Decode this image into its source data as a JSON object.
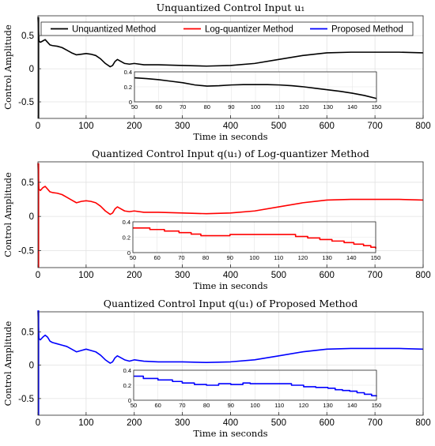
{
  "chart_data": [
    {
      "type": "line",
      "title": "Unquantized Control Input u₁",
      "xlabel": "Time in seconds",
      "ylabel": "Control Amplitude",
      "xlim": [
        0,
        800
      ],
      "ylim": [
        -0.75,
        0.8
      ],
      "xticks": [
        0,
        100,
        200,
        300,
        400,
        500,
        600,
        700,
        800
      ],
      "yticks": [
        -0.5,
        0,
        0.5
      ],
      "grid": true,
      "legend": "top",
      "legend_entries": [
        {
          "name": "Unquantized Method",
          "color": "#000000"
        },
        {
          "name": "Log-quantizer Method",
          "color": "#ff0000"
        },
        {
          "name": "Proposed Method",
          "color": "#0000ff"
        }
      ],
      "series": [
        {
          "name": "Unquantized Method",
          "color": "#000000",
          "x": [
            0,
            2,
            5,
            10,
            15,
            20,
            25,
            30,
            40,
            50,
            60,
            70,
            80,
            90,
            100,
            110,
            120,
            130,
            140,
            150,
            155,
            160,
            165,
            170,
            180,
            190,
            200,
            220,
            250,
            300,
            350,
            400,
            450,
            500,
            550,
            600,
            650,
            700,
            750,
            800
          ],
          "y": [
            0.78,
            0.42,
            0.4,
            0.42,
            0.44,
            0.4,
            0.36,
            0.35,
            0.34,
            0.32,
            0.28,
            0.24,
            0.21,
            0.22,
            0.23,
            0.22,
            0.2,
            0.15,
            0.08,
            0.03,
            0.05,
            0.11,
            0.14,
            0.12,
            0.08,
            0.07,
            0.08,
            0.06,
            0.06,
            0.05,
            0.04,
            0.05,
            0.08,
            0.14,
            0.2,
            0.24,
            0.25,
            0.25,
            0.25,
            0.24
          ],
          "inset": {
            "xlim": [
              50,
              150
            ],
            "ylim": [
              0,
              0.4
            ],
            "xticks": [
              50,
              60,
              70,
              80,
              90,
              100,
              110,
              120,
              130,
              140,
              150
            ],
            "yticks": [
              0,
              0.2,
              0.4
            ],
            "x": [
              50,
              55,
              60,
              65,
              70,
              75,
              80,
              85,
              90,
              95,
              100,
              105,
              110,
              115,
              120,
              125,
              130,
              135,
              140,
              145,
              150
            ],
            "y": [
              0.32,
              0.31,
              0.295,
              0.275,
              0.255,
              0.225,
              0.21,
              0.215,
              0.225,
              0.23,
              0.23,
              0.23,
              0.225,
              0.215,
              0.2,
              0.18,
              0.16,
              0.14,
              0.115,
              0.085,
              0.045
            ]
          }
        }
      ]
    },
    {
      "type": "line",
      "title": "Quantized Control Input q(u₁) of Log-quantizer Method",
      "xlabel": "Time in seconds",
      "ylabel": "Control Amplitude",
      "xlim": [
        0,
        800
      ],
      "ylim": [
        -0.75,
        0.8
      ],
      "xticks": [
        0,
        100,
        200,
        300,
        400,
        500,
        600,
        700,
        800
      ],
      "yticks": [
        -0.5,
        0,
        0.5
      ],
      "grid": true,
      "series": [
        {
          "name": "Log-quantizer Method",
          "color": "#ff0000",
          "x": [
            0,
            2,
            5,
            10,
            15,
            20,
            25,
            30,
            40,
            50,
            60,
            70,
            80,
            90,
            100,
            110,
            120,
            130,
            140,
            150,
            155,
            160,
            165,
            170,
            180,
            190,
            200,
            220,
            250,
            300,
            350,
            400,
            450,
            500,
            550,
            600,
            650,
            700,
            750,
            800
          ],
          "y": [
            0.78,
            0.4,
            0.38,
            0.42,
            0.44,
            0.4,
            0.36,
            0.35,
            0.34,
            0.32,
            0.28,
            0.24,
            0.2,
            0.22,
            0.23,
            0.22,
            0.2,
            0.15,
            0.08,
            0.03,
            0.05,
            0.11,
            0.14,
            0.12,
            0.08,
            0.07,
            0.08,
            0.06,
            0.06,
            0.05,
            0.04,
            0.05,
            0.08,
            0.14,
            0.2,
            0.24,
            0.25,
            0.25,
            0.25,
            0.24
          ],
          "inset": {
            "xlim": [
              50,
              150
            ],
            "ylim": [
              0,
              0.4
            ],
            "xticks": [
              50,
              60,
              70,
              80,
              90,
              100,
              110,
              120,
              130,
              140,
              150
            ],
            "yticks": [
              0,
              0.2,
              0.4
            ],
            "steps": true,
            "x": [
              50,
              57,
              63,
              69,
              74,
              78,
              85,
              90,
              110,
              117,
              122,
              127,
              132,
              137,
              141,
              145,
              148,
              150
            ],
            "y": [
              0.32,
              0.3,
              0.28,
              0.26,
              0.24,
              0.22,
              0.22,
              0.235,
              0.235,
              0.21,
              0.19,
              0.17,
              0.15,
              0.13,
              0.11,
              0.09,
              0.07,
              0.05
            ]
          }
        }
      ]
    },
    {
      "type": "line",
      "title": "Quantized Control Input q(u₁) of Proposed Method",
      "xlabel": "Time in seconds",
      "ylabel": "Control Amplitude",
      "xlim": [
        0,
        800
      ],
      "ylim": [
        -0.75,
        0.8
      ],
      "xticks": [
        0,
        100,
        200,
        300,
        400,
        500,
        600,
        700,
        800
      ],
      "yticks": [
        -0.5,
        0,
        0.5
      ],
      "grid": true,
      "series": [
        {
          "name": "Proposed Method",
          "color": "#0000ff",
          "x": [
            0,
            2,
            5,
            10,
            15,
            20,
            25,
            30,
            40,
            50,
            60,
            70,
            80,
            90,
            100,
            110,
            120,
            130,
            140,
            150,
            155,
            160,
            165,
            170,
            180,
            190,
            200,
            220,
            250,
            300,
            350,
            400,
            450,
            500,
            550,
            600,
            650,
            700,
            750,
            800
          ],
          "y": [
            0.82,
            0.4,
            0.38,
            0.42,
            0.45,
            0.42,
            0.36,
            0.34,
            0.32,
            0.3,
            0.28,
            0.24,
            0.2,
            0.22,
            0.24,
            0.22,
            0.2,
            0.15,
            0.08,
            0.03,
            0.05,
            0.11,
            0.14,
            0.12,
            0.08,
            0.06,
            0.08,
            0.06,
            0.05,
            0.05,
            0.04,
            0.05,
            0.08,
            0.14,
            0.2,
            0.24,
            0.25,
            0.25,
            0.25,
            0.24
          ],
          "inset": {
            "xlim": [
              50,
              150
            ],
            "ylim": [
              0,
              0.4
            ],
            "xticks": [
              50,
              60,
              70,
              80,
              90,
              100,
              110,
              120,
              130,
              140,
              150
            ],
            "yticks": [
              0,
              0.2,
              0.4
            ],
            "steps": true,
            "x": [
              50,
              54,
              60,
              66,
              70,
              75,
              80,
              85,
              90,
              95,
              98,
              110,
              115,
              120,
              125,
              130,
              133,
              136,
              139,
              142,
              145,
              148,
              150
            ],
            "y": [
              0.32,
              0.29,
              0.27,
              0.25,
              0.23,
              0.21,
              0.2,
              0.22,
              0.21,
              0.23,
              0.22,
              0.22,
              0.2,
              0.18,
              0.17,
              0.16,
              0.14,
              0.13,
              0.12,
              0.1,
              0.08,
              0.06,
              0.05
            ]
          }
        }
      ]
    }
  ]
}
